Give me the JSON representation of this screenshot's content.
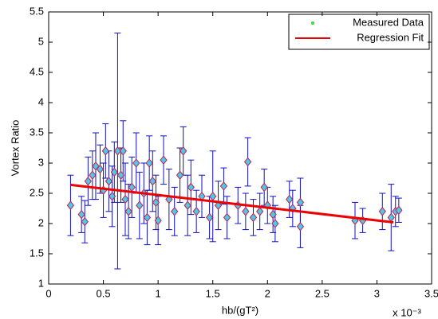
{
  "chart_data": {
    "type": "errorbar",
    "xlabel": "hb/(gT²)",
    "ylabel": "Vortex Ratio",
    "x_exponent_label": "x 10⁻³",
    "xlim": [
      0,
      3.5
    ],
    "ylim": [
      1,
      5.5
    ],
    "xticks": [
      0,
      0.5,
      1,
      1.5,
      2,
      2.5,
      3,
      3.5
    ],
    "yticks": [
      1,
      1.5,
      2,
      2.5,
      3,
      3.5,
      4,
      4.5,
      5,
      5.5
    ],
    "legend": "upper right",
    "series": [
      {
        "name": "Measured Data",
        "color": "#33dd33",
        "errorbar_color": "#1010c0",
        "marker_fill": "#4fc8e8",
        "marker_edge": "#c02050",
        "x": [
          0.2,
          0.3,
          0.33,
          0.36,
          0.4,
          0.43,
          0.47,
          0.5,
          0.52,
          0.55,
          0.58,
          0.6,
          0.63,
          0.66,
          0.68,
          0.7,
          0.73,
          0.76,
          0.8,
          0.83,
          0.87,
          0.9,
          0.92,
          0.95,
          0.98,
          1.0,
          1.05,
          1.1,
          1.15,
          1.2,
          1.23,
          1.27,
          1.3,
          1.35,
          1.4,
          1.47,
          1.5,
          1.55,
          1.6,
          1.63,
          1.73,
          1.8,
          1.82,
          1.87,
          1.93,
          1.97,
          2.0,
          2.05,
          2.07,
          2.2,
          2.23,
          2.3,
          2.3,
          2.8,
          2.87,
          3.05,
          3.13,
          3.17,
          3.2
        ],
        "values": [
          2.3,
          2.15,
          2.03,
          2.7,
          2.8,
          2.95,
          2.9,
          2.55,
          3.2,
          2.7,
          2.45,
          2.85,
          3.2,
          2.8,
          3.2,
          2.4,
          2.2,
          2.6,
          3.0,
          2.3,
          2.5,
          2.1,
          3.0,
          2.7,
          2.35,
          2.05,
          3.05,
          2.4,
          2.2,
          2.8,
          3.2,
          2.3,
          2.6,
          2.2,
          2.45,
          2.1,
          2.45,
          2.3,
          2.62,
          2.1,
          2.3,
          2.2,
          3.02,
          2.1,
          2.2,
          2.6,
          2.3,
          2.15,
          2.0,
          2.4,
          2.25,
          2.35,
          1.95,
          2.05,
          2.05,
          2.2,
          2.1,
          2.2,
          2.22
        ],
        "errors": [
          0.5,
          0.3,
          0.35,
          0.4,
          0.4,
          0.55,
          0.4,
          0.45,
          0.45,
          0.5,
          0.5,
          0.5,
          1.95,
          0.45,
          0.5,
          0.6,
          0.45,
          0.5,
          0.5,
          0.55,
          0.5,
          0.45,
          0.45,
          0.5,
          0.45,
          0.4,
          0.4,
          0.5,
          0.4,
          0.45,
          0.4,
          0.5,
          0.45,
          0.35,
          0.35,
          0.35,
          0.75,
          0.4,
          0.3,
          0.35,
          0.3,
          0.3,
          0.4,
          0.3,
          0.3,
          0.3,
          0.3,
          0.3,
          0.3,
          0.3,
          0.3,
          0.4,
          0.35,
          0.3,
          0.2,
          0.3,
          0.55,
          0.25,
          0.2
        ]
      },
      {
        "name": "Regression Fit",
        "color": "#ee0000",
        "x": [
          0.2,
          3.15
        ],
        "values": [
          2.64,
          2.02
        ]
      }
    ]
  }
}
